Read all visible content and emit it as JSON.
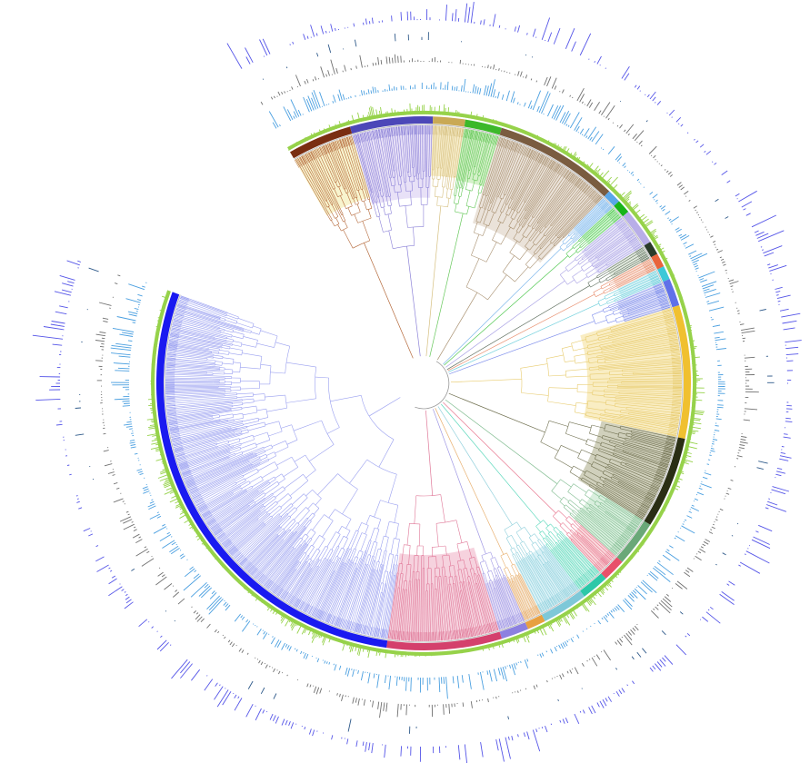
{
  "figure": {
    "kind": "circular phylogenetic tree",
    "has_visible_text": false,
    "gap_between_degrees": [
      200,
      240
    ],
    "colors": {
      "main_clade": "#9aa0f0",
      "main_clade_band": "#1a1af0",
      "outer_bars_blue": "#5555e8",
      "bars_steelblue": "#2f5a8a",
      "bars_gray": "#707070",
      "bars_lightblue": "#4a9fe0",
      "bars_green": "#96d24a"
    },
    "clade_bands": [
      {
        "start": 240,
        "end": 254,
        "fill": "#f7f2c6",
        "band": "#7a2e12",
        "edge": "#b56a3c"
      },
      {
        "start": 254,
        "end": 272,
        "fill": "#e4dcf6",
        "band": "#4c47b8",
        "edge": "#8c82d8"
      },
      {
        "start": 272,
        "end": 279,
        "fill": "#f4e9c0",
        "band": "#c9a955",
        "edge": "#d6c080"
      },
      {
        "start": 279,
        "end": 287,
        "fill": "#cdeebf",
        "band": "#3cb82a",
        "edge": "#66c85a"
      },
      {
        "start": 287,
        "end": 314,
        "fill": "#e6ddd2",
        "band": "#7a5c40",
        "edge": "#a89070"
      },
      {
        "start": 314,
        "end": 317,
        "fill": "#cfe6fa",
        "band": "#5aa6e8",
        "edge": "#80b8ec"
      },
      {
        "start": 317,
        "end": 320,
        "fill": "#c8f2c8",
        "band": "#18b418",
        "edge": "#50c850"
      },
      {
        "start": 320,
        "end": 328,
        "fill": "#e4e2f8",
        "band": "#b8aee8",
        "edge": "#a8a0e4"
      },
      {
        "start": 328,
        "end": 331,
        "fill": "#dde6d8",
        "band": "#2a3a2a",
        "edge": "#607060"
      },
      {
        "start": 331,
        "end": 334,
        "fill": "#f8dcd0",
        "band": "#e8643c",
        "edge": "#e89070"
      },
      {
        "start": 334,
        "end": 337,
        "fill": "#d0f0f4",
        "band": "#3cc8d8",
        "edge": "#70d0dc"
      },
      {
        "start": 337,
        "end": 343,
        "fill": "#d8daf8",
        "band": "#6070e8",
        "edge": "#8090ec"
      },
      {
        "start": 343,
        "end": 372,
        "fill": "#f8eab8",
        "band": "#f0c030",
        "edge": "#e8cc70"
      },
      {
        "start": 372,
        "end": 392,
        "fill": "#c8c8b0",
        "band": "#2a2e14",
        "edge": "#707050"
      },
      {
        "start": 392,
        "end": 402,
        "fill": "#d2ecd8",
        "band": "#6aa878",
        "edge": "#80bc90"
      },
      {
        "start": 402,
        "end": 407,
        "fill": "#f8d2d6",
        "band": "#e8506a",
        "edge": "#e87890"
      },
      {
        "start": 407,
        "end": 413,
        "fill": "#c8f2e8",
        "band": "#2cc8a8",
        "edge": "#5cd8bc"
      },
      {
        "start": 413,
        "end": 423,
        "fill": "#d2eef4",
        "band": "#7ec8d8",
        "edge": "#90d0dc"
      },
      {
        "start": 423,
        "end": 427,
        "fill": "#f4e0c8",
        "band": "#e8a040",
        "edge": "#e8b070"
      },
      {
        "start": 427,
        "end": 433,
        "fill": "#dcd6f4",
        "band": "#8c80e0",
        "edge": "#a098e4"
      },
      {
        "start": 433,
        "end": 458,
        "fill": "#f4cad8",
        "band": "#d4406c",
        "edge": "#e07898"
      }
    ],
    "main_clade": {
      "start": 458,
      "end": 560
    }
  }
}
